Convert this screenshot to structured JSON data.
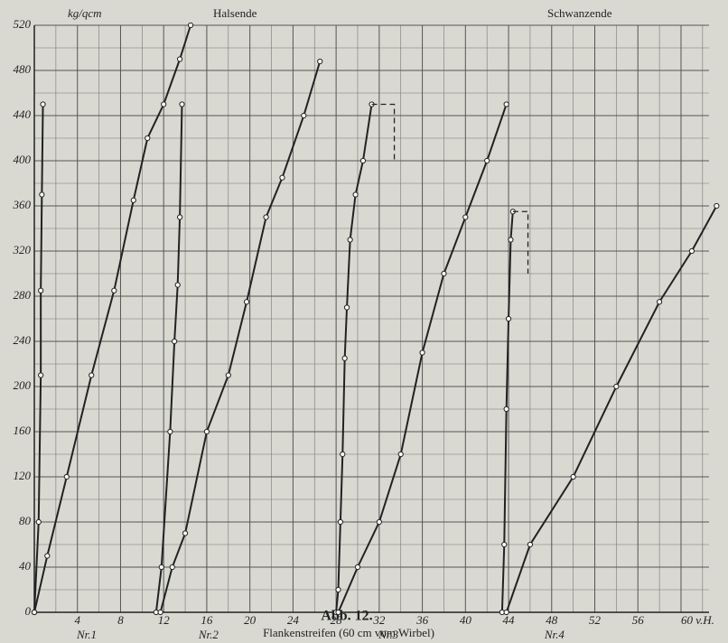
{
  "chart_data": {
    "type": "line",
    "y_label": "kg/qcm",
    "annotations": [
      "Halsende",
      "Schwanzende"
    ],
    "figure_label": "Abb. 12.",
    "x_label": "Flankenstreifen (60 cm vom Wirbel)",
    "xlim": [
      0,
      62.6
    ],
    "ylim": [
      0,
      520
    ],
    "xticks": [
      4,
      8,
      12,
      16,
      20,
      24,
      28,
      32,
      36,
      40,
      44,
      48,
      52,
      56,
      {
        "value": 60,
        "label": "60 v.H."
      }
    ],
    "yticks": [
      0,
      40,
      80,
      120,
      160,
      200,
      240,
      280,
      320,
      360,
      400,
      440,
      480,
      520
    ],
    "grid": true,
    "color": "#222222",
    "groups": [
      {
        "name": "Nr.1",
        "curves": [
          {
            "x": [
              0,
              0.4,
              0.6,
              0.6,
              0.7,
              0.8
            ],
            "y": [
              0,
              80,
              210,
              285,
              370,
              450
            ]
          },
          {
            "x": [
              0,
              1.2,
              3,
              5.3,
              7.4,
              9.2,
              10.5,
              12,
              13.5,
              14.5
            ],
            "y": [
              0,
              50,
              120,
              210,
              285,
              365,
              420,
              450,
              490,
              520
            ]
          }
        ]
      },
      {
        "name": "Nr.2",
        "curves": [
          {
            "x": [
              11.3,
              11.8,
              12.6,
              13,
              13.3,
              13.5,
              13.7
            ],
            "y": [
              0,
              40,
              160,
              240,
              290,
              350,
              450
            ]
          },
          {
            "x": [
              11.7,
              12.8,
              14,
              16,
              18,
              19.7,
              21.5,
              23,
              25,
              26.5
            ],
            "y": [
              0,
              40,
              70,
              160,
              210,
              275,
              350,
              385,
              440,
              488
            ]
          }
        ]
      },
      {
        "name": "Nr.3",
        "curves": [
          {
            "x": [
              28,
              28.2,
              28.4,
              28.6,
              28.8,
              29,
              29.3,
              29.8,
              30.5,
              31.3
            ],
            "y": [
              0,
              20,
              80,
              140,
              225,
              270,
              330,
              370,
              400,
              450
            ]
          },
          {
            "x": [
              31.3,
              33.4,
              33.4
            ],
            "y": [
              450,
              450,
              400
            ],
            "dashed": true
          },
          {
            "x": [
              28.2,
              30,
              32,
              34,
              36,
              38,
              40,
              42,
              43.8
            ],
            "y": [
              0,
              40,
              80,
              140,
              230,
              300,
              350,
              400,
              450
            ]
          }
        ]
      },
      {
        "name": "Nr.4",
        "curves": [
          {
            "x": [
              43.4,
              43.6,
              43.8,
              44,
              44.2,
              44.4
            ],
            "y": [
              0,
              60,
              180,
              260,
              330,
              355
            ]
          },
          {
            "x": [
              44.4,
              45.8,
              45.8
            ],
            "y": [
              355,
              355,
              300
            ],
            "dashed": true
          },
          {
            "x": [
              43.8,
              46,
              50,
              54,
              58,
              61,
              63.3
            ],
            "y": [
              0,
              60,
              120,
              200,
              275,
              320,
              360
            ]
          }
        ]
      }
    ]
  }
}
